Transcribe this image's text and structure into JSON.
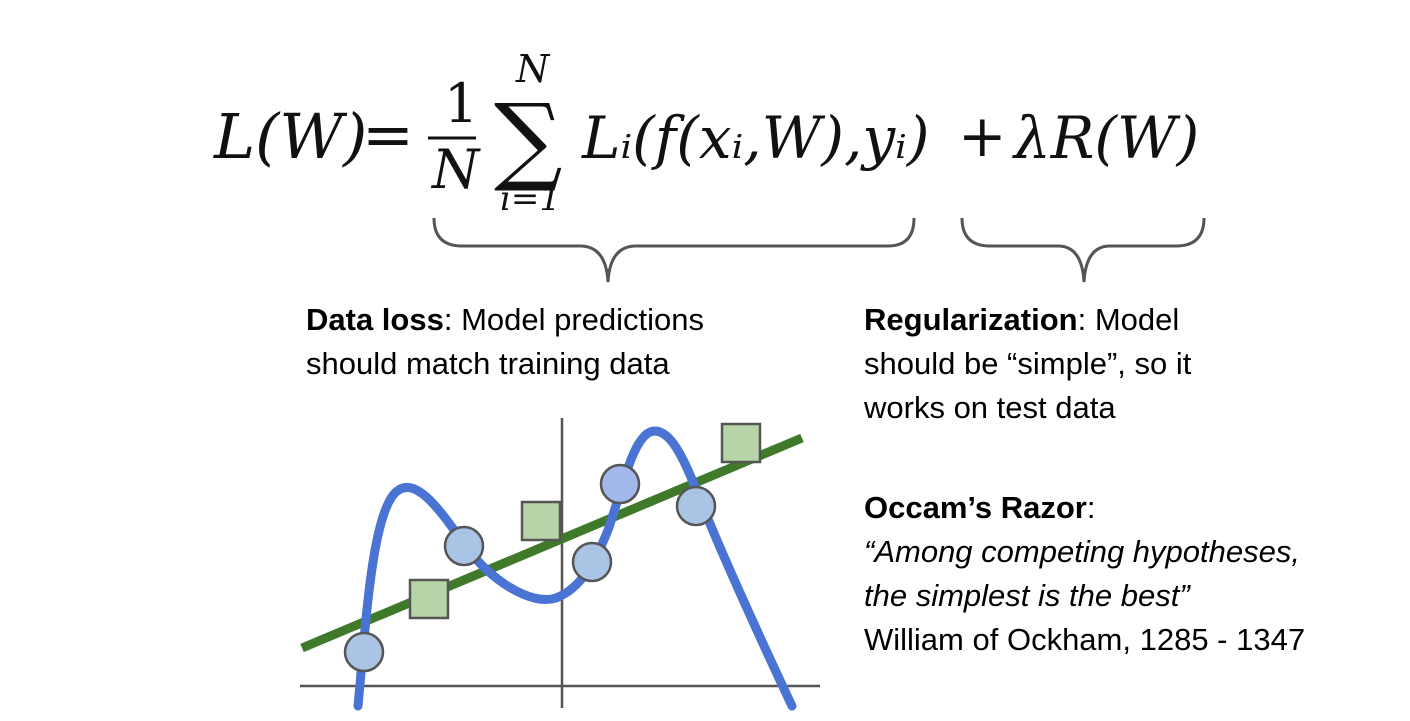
{
  "equation": {
    "lhs": "L(W)",
    "equals": "=",
    "frac_num": "1",
    "frac_den": "N",
    "sum_upper": "N",
    "sum_lower": "i=1",
    "sum_symbol": "∑",
    "loss_term": "Lᵢ(f(xᵢ,W),yᵢ)",
    "plus": "+",
    "reg_term": "λR(W)"
  },
  "data_loss": {
    "title": "Data loss",
    "text_line1": ": Model predictions",
    "text_line2": "should match training data"
  },
  "regularization": {
    "title": "Regularization",
    "text_line1": ": Model",
    "text_line2": "should be “simple”, so it",
    "text_line3": "works on test data"
  },
  "occam": {
    "title": "Occam’s Razor",
    "colon": ":",
    "quote_line1": "“Among competing hypotheses,",
    "quote_line2": "the simplest is the best”",
    "attribution": "William of Ockham, 1285 - 1347"
  },
  "plot": {
    "curve_color": "#4a74d4",
    "line_color": "#3f7a2b",
    "circle_fill": "#a9c4e4",
    "circle_highlight_fill": "#a3b8ea",
    "square_fill": "#b7d4a8",
    "axis_color": "#555555"
  }
}
